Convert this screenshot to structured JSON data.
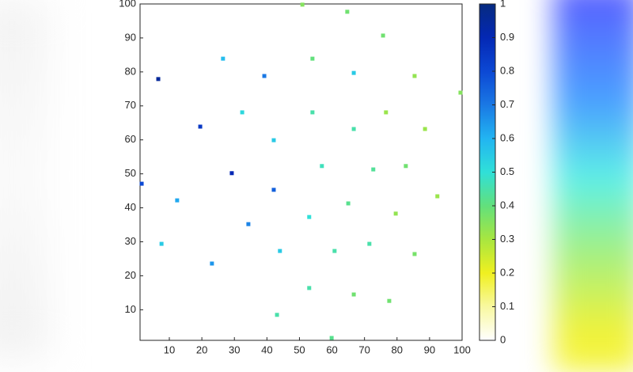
{
  "chart_data": {
    "type": "scatter",
    "x": [
      50.9,
      64.7,
      75.7,
      26.5,
      54.0,
      6.6,
      39.2,
      66.7,
      85.4,
      99.5,
      32.4,
      54.0,
      76.6,
      19.5,
      66.7,
      88.6,
      42.1,
      29.2,
      56.9,
      72.7,
      82.7,
      1.5,
      42.1,
      12.4,
      65.0,
      92.4,
      79.6,
      53.0,
      34.3,
      7.6,
      71.5,
      44.0,
      60.8,
      85.4,
      23.1,
      53.0,
      66.7,
      77.6,
      43.1,
      59.9
    ],
    "values": [
      99.8,
      97.7,
      90.7,
      83.9,
      83.9,
      77.9,
      78.8,
      79.7,
      78.8,
      73.9,
      68.1,
      68.1,
      68.1,
      63.9,
      63.2,
      63.2,
      59.9,
      50.2,
      52.3,
      51.3,
      52.3,
      47.1,
      45.3,
      42.2,
      41.3,
      43.4,
      38.3,
      37.3,
      35.2,
      29.4,
      29.4,
      27.3,
      27.3,
      26.4,
      23.6,
      16.4,
      14.5,
      12.6,
      8.5,
      1.7
    ],
    "c": [
      0.35,
      0.38,
      0.38,
      0.58,
      0.4,
      0.95,
      0.7,
      0.55,
      0.33,
      0.35,
      0.52,
      0.45,
      0.32,
      0.85,
      0.45,
      0.32,
      0.55,
      0.9,
      0.47,
      0.43,
      0.38,
      0.8,
      0.75,
      0.62,
      0.42,
      0.32,
      0.33,
      0.5,
      0.68,
      0.55,
      0.45,
      0.55,
      0.45,
      0.37,
      0.65,
      0.45,
      0.38,
      0.38,
      0.45,
      0.42
    ],
    "xlim": [
      1,
      100
    ],
    "ylim": [
      1,
      100
    ],
    "xticks": [
      10,
      20,
      30,
      40,
      50,
      60,
      70,
      80,
      90,
      100
    ],
    "yticks": [
      10,
      20,
      30,
      40,
      50,
      60,
      70,
      80,
      90,
      100
    ],
    "clim": [
      0,
      1
    ],
    "cticks": [
      0,
      0.1,
      0.2,
      0.3,
      0.4,
      0.5,
      0.6,
      0.7,
      0.8,
      0.9,
      1
    ],
    "colormap": [
      "#ffffff",
      "#f8f8a0",
      "#f0f020",
      "#a8e640",
      "#62e07c",
      "#30e0d8",
      "#22b4f2",
      "#1a78e4",
      "#0c48d4",
      "#0428b4",
      "#062a80"
    ]
  }
}
